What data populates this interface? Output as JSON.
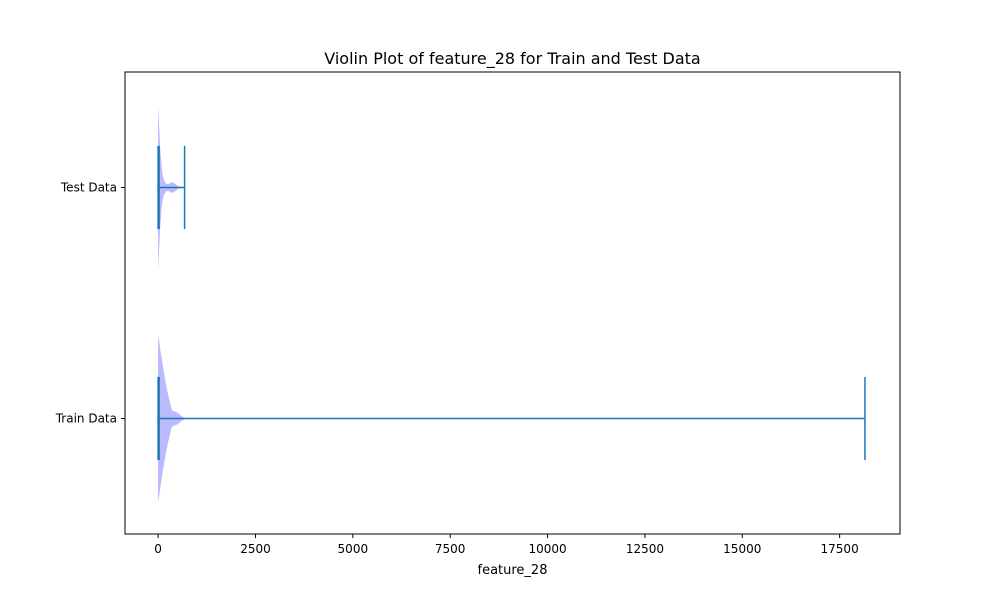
{
  "chart_data": {
    "type": "violin",
    "orientation": "horizontal",
    "title": "Violin Plot of feature_28 for Train and Test Data",
    "xlabel": "feature_28",
    "ylabel": "",
    "xlim": [
      -850,
      19050
    ],
    "xticks": [
      0,
      2500,
      5000,
      7500,
      10000,
      12500,
      15000,
      17500
    ],
    "xtick_labels": [
      "0",
      "2500",
      "5000",
      "7500",
      "10000",
      "12500",
      "15000",
      "17500"
    ],
    "categories": [
      "Train Data",
      "Test Data"
    ],
    "series": [
      {
        "name": "Train Data",
        "min": 0,
        "max": 18150,
        "median": 0,
        "density_profile": [
          [
            0,
            1.0
          ],
          [
            30,
            0.92
          ],
          [
            60,
            0.82
          ],
          [
            100,
            0.7
          ],
          [
            150,
            0.55
          ],
          [
            200,
            0.42
          ],
          [
            250,
            0.3
          ],
          [
            300,
            0.2
          ],
          [
            350,
            0.1
          ],
          [
            400,
            0.09
          ],
          [
            450,
            0.08
          ],
          [
            500,
            0.07
          ],
          [
            550,
            0.05
          ],
          [
            600,
            0.03
          ],
          [
            650,
            0.015
          ],
          [
            700,
            0.0
          ]
        ]
      },
      {
        "name": "Test Data",
        "min": 0,
        "max": 680,
        "median": 0,
        "density_profile": [
          [
            0,
            1.0
          ],
          [
            25,
            0.75
          ],
          [
            50,
            0.5
          ],
          [
            80,
            0.3
          ],
          [
            110,
            0.17
          ],
          [
            150,
            0.09
          ],
          [
            200,
            0.05
          ],
          [
            250,
            0.04
          ],
          [
            300,
            0.05
          ],
          [
            350,
            0.065
          ],
          [
            400,
            0.06
          ],
          [
            450,
            0.04
          ],
          [
            500,
            0.02
          ],
          [
            560,
            0.008
          ],
          [
            620,
            0.002
          ],
          [
            680,
            0.0
          ]
        ]
      }
    ],
    "colors": {
      "body": "#b3b3ff",
      "lines": "#1f77b4",
      "axes": "#000000"
    },
    "grid": false,
    "legend": "none"
  }
}
